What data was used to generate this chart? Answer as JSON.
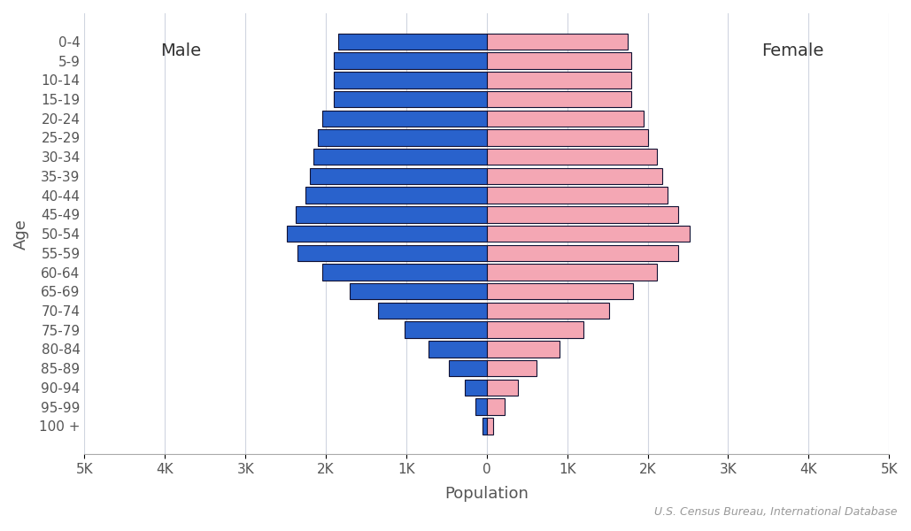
{
  "age_groups": [
    "0-4",
    "5-9",
    "10-14",
    "15-19",
    "20-24",
    "25-29",
    "30-34",
    "35-39",
    "40-44",
    "45-49",
    "50-54",
    "55-59",
    "60-64",
    "65-69",
    "70-74",
    "75-79",
    "80-84",
    "85-89",
    "90-94",
    "95-99",
    "100 +"
  ],
  "male": [
    1850,
    1900,
    1900,
    1900,
    2050,
    2100,
    2150,
    2200,
    2250,
    2380,
    2480,
    2350,
    2050,
    1700,
    1350,
    1020,
    720,
    470,
    270,
    140,
    50
  ],
  "female": [
    1750,
    1800,
    1800,
    1800,
    1950,
    2000,
    2120,
    2180,
    2250,
    2380,
    2520,
    2380,
    2120,
    1820,
    1520,
    1200,
    900,
    620,
    390,
    220,
    80
  ],
  "male_color": "#2962CC",
  "female_color": "#F4A7B4",
  "edge_color": "#111133",
  "background_color": "#ffffff",
  "grid_color": "#d0d5e0",
  "xlabel": "Population",
  "ylabel": "Age",
  "male_label": "Male",
  "female_label": "Female",
  "source_text": "U.S. Census Bureau, International Database",
  "xlim": 5000,
  "xtick_labels": [
    "5K",
    "4K",
    "3K",
    "2K",
    "1K",
    "0",
    "1K",
    "2K",
    "3K",
    "4K",
    "5K"
  ],
  "xtick_vals": [
    -5000,
    -4000,
    -3000,
    -2000,
    -1000,
    0,
    1000,
    2000,
    3000,
    4000,
    5000
  ],
  "label_fontsize": 13,
  "tick_fontsize": 11,
  "annotation_fontsize": 14,
  "source_fontsize": 9,
  "bar_height": 0.85,
  "linewidth": 0.8
}
